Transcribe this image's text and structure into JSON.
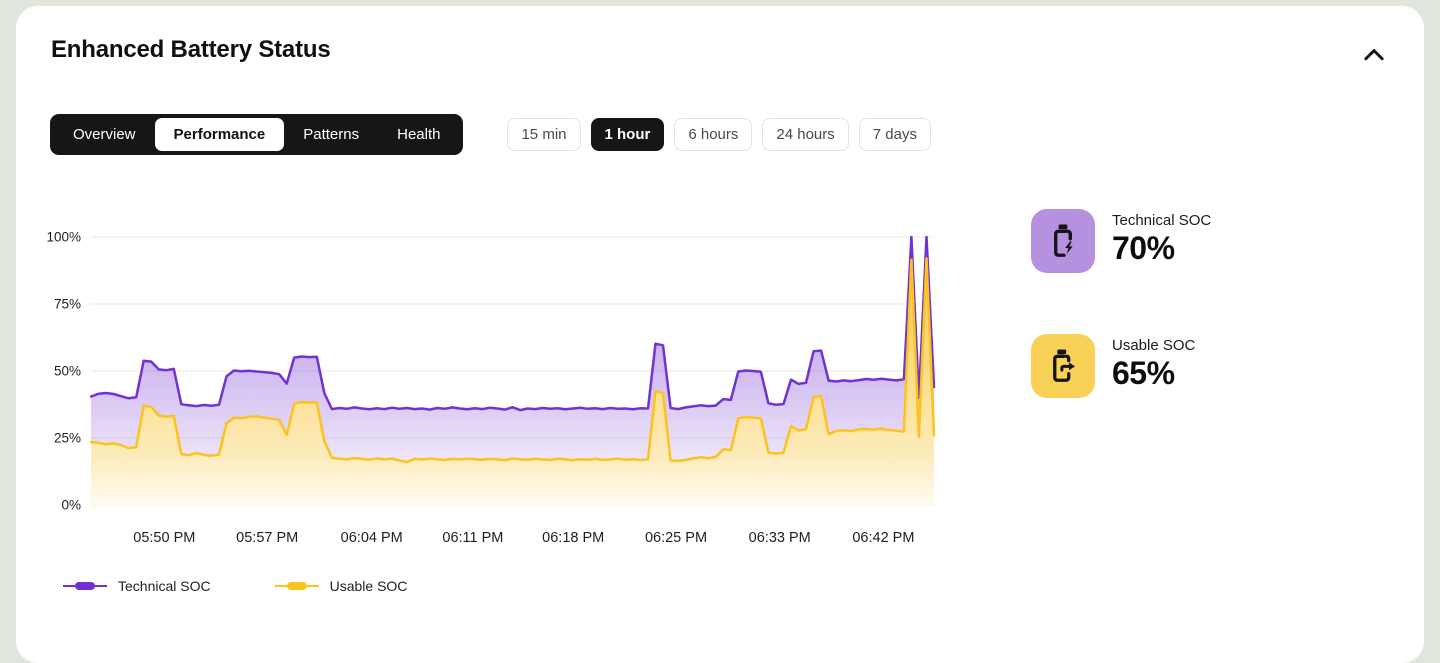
{
  "header": {
    "title": "Enhanced Battery Status",
    "collapse_icon": "chevron-up"
  },
  "tabs": {
    "items": [
      "Overview",
      "Performance",
      "Patterns",
      "Health"
    ],
    "active": "Performance"
  },
  "time_ranges": {
    "items": [
      "15 min",
      "1 hour",
      "6 hours",
      "24 hours",
      "7 days"
    ],
    "active": "1 hour"
  },
  "stats": [
    {
      "label": "Technical SOC",
      "value": "70%",
      "icon": "battery-charging-icon",
      "tile_color": "#b691e0"
    },
    {
      "label": "Usable SOC",
      "value": "65%",
      "icon": "battery-export-icon",
      "tile_color": "#f9d157"
    }
  ],
  "chart_data": {
    "type": "area",
    "title": "",
    "xlabel": "",
    "ylabel": "",
    "ylim": [
      0,
      100
    ],
    "grid": "horizontal",
    "legend_position": "bottom-left",
    "y_ticks": [
      "0%",
      "25%",
      "50%",
      "75%",
      "100%"
    ],
    "x_ticks": [
      {
        "label": "05:50 PM",
        "f": 0.087
      },
      {
        "label": "05:57 PM",
        "f": 0.209
      },
      {
        "label": "06:04 PM",
        "f": 0.333
      },
      {
        "label": "06:11 PM",
        "f": 0.453
      },
      {
        "label": "06:18 PM",
        "f": 0.572
      },
      {
        "label": "06:25 PM",
        "f": 0.694
      },
      {
        "label": "06:33 PM",
        "f": 0.817
      },
      {
        "label": "06:42 PM",
        "f": 0.94
      }
    ],
    "series": [
      {
        "name": "Technical SOC",
        "color": "#7132d3",
        "values": [
          40.5,
          41.5,
          41.8,
          41.4,
          40.6,
          39.8,
          40.2,
          53.8,
          53.5,
          50.6,
          50.3,
          50.8,
          37.6,
          37.2,
          36.9,
          37.3,
          37.0,
          37.4,
          48.0,
          50.2,
          49.9,
          50.1,
          49.8,
          49.6,
          49.3,
          48.8,
          45.3,
          55.0,
          55.4,
          55.2,
          55.3,
          41.8,
          35.8,
          36.2,
          35.9,
          36.4,
          36.0,
          35.7,
          36.1,
          35.8,
          36.3,
          35.9,
          36.2,
          35.8,
          36.0,
          35.6,
          36.2,
          35.9,
          36.4,
          36.0,
          35.7,
          36.1,
          35.8,
          36.3,
          36.0,
          35.6,
          36.5,
          35.4,
          36.0,
          35.8,
          36.2,
          35.9,
          36.1,
          35.7,
          36.0,
          36.3,
          35.9,
          36.1,
          35.8,
          36.2,
          35.9,
          36.0,
          35.7,
          36.1,
          36.0,
          60.2,
          59.6,
          36.2,
          35.8,
          36.4,
          36.8,
          37.2,
          36.9,
          37.1,
          39.5,
          39.2,
          49.8,
          50.2,
          50.0,
          49.7,
          38.0,
          37.4,
          37.7,
          46.8,
          45.2,
          45.6,
          57.4,
          57.6,
          46.4,
          46.1,
          46.5,
          46.2,
          46.6,
          47.0,
          46.7,
          47.1,
          46.8,
          46.5,
          46.9,
          100.0,
          40.0,
          100.0,
          44.0
        ]
      },
      {
        "name": "Usable SOC",
        "color": "#fbc31c",
        "values": [
          23.5,
          23.2,
          22.6,
          23.0,
          22.4,
          21.2,
          21.6,
          37.0,
          36.6,
          33.4,
          33.0,
          33.2,
          19.0,
          18.6,
          19.4,
          18.7,
          18.4,
          18.8,
          30.5,
          32.6,
          32.4,
          32.9,
          33.1,
          32.6,
          32.2,
          31.8,
          26.2,
          37.8,
          38.4,
          38.2,
          38.3,
          24.0,
          17.6,
          17.3,
          17.0,
          17.5,
          17.2,
          16.9,
          17.4,
          17.0,
          17.3,
          16.6,
          16.1,
          17.2,
          17.0,
          17.3,
          17.1,
          16.8,
          17.2,
          17.0,
          17.3,
          17.1,
          16.9,
          17.2,
          17.0,
          16.7,
          17.4,
          17.1,
          16.9,
          17.2,
          17.0,
          16.8,
          17.3,
          17.0,
          16.7,
          17.1,
          16.9,
          17.2,
          16.8,
          17.0,
          17.3,
          16.9,
          17.1,
          16.8,
          17.0,
          42.4,
          41.8,
          16.6,
          16.4,
          16.8,
          17.4,
          17.8,
          17.5,
          17.9,
          20.8,
          20.5,
          32.4,
          32.8,
          32.6,
          32.3,
          19.6,
          19.2,
          19.5,
          29.4,
          27.8,
          28.3,
          40.4,
          40.6,
          26.4,
          27.6,
          27.9,
          27.6,
          28.2,
          28.4,
          28.1,
          28.5,
          28.0,
          27.7,
          27.4,
          91.5,
          25.5,
          92.0,
          26.0
        ]
      }
    ]
  }
}
